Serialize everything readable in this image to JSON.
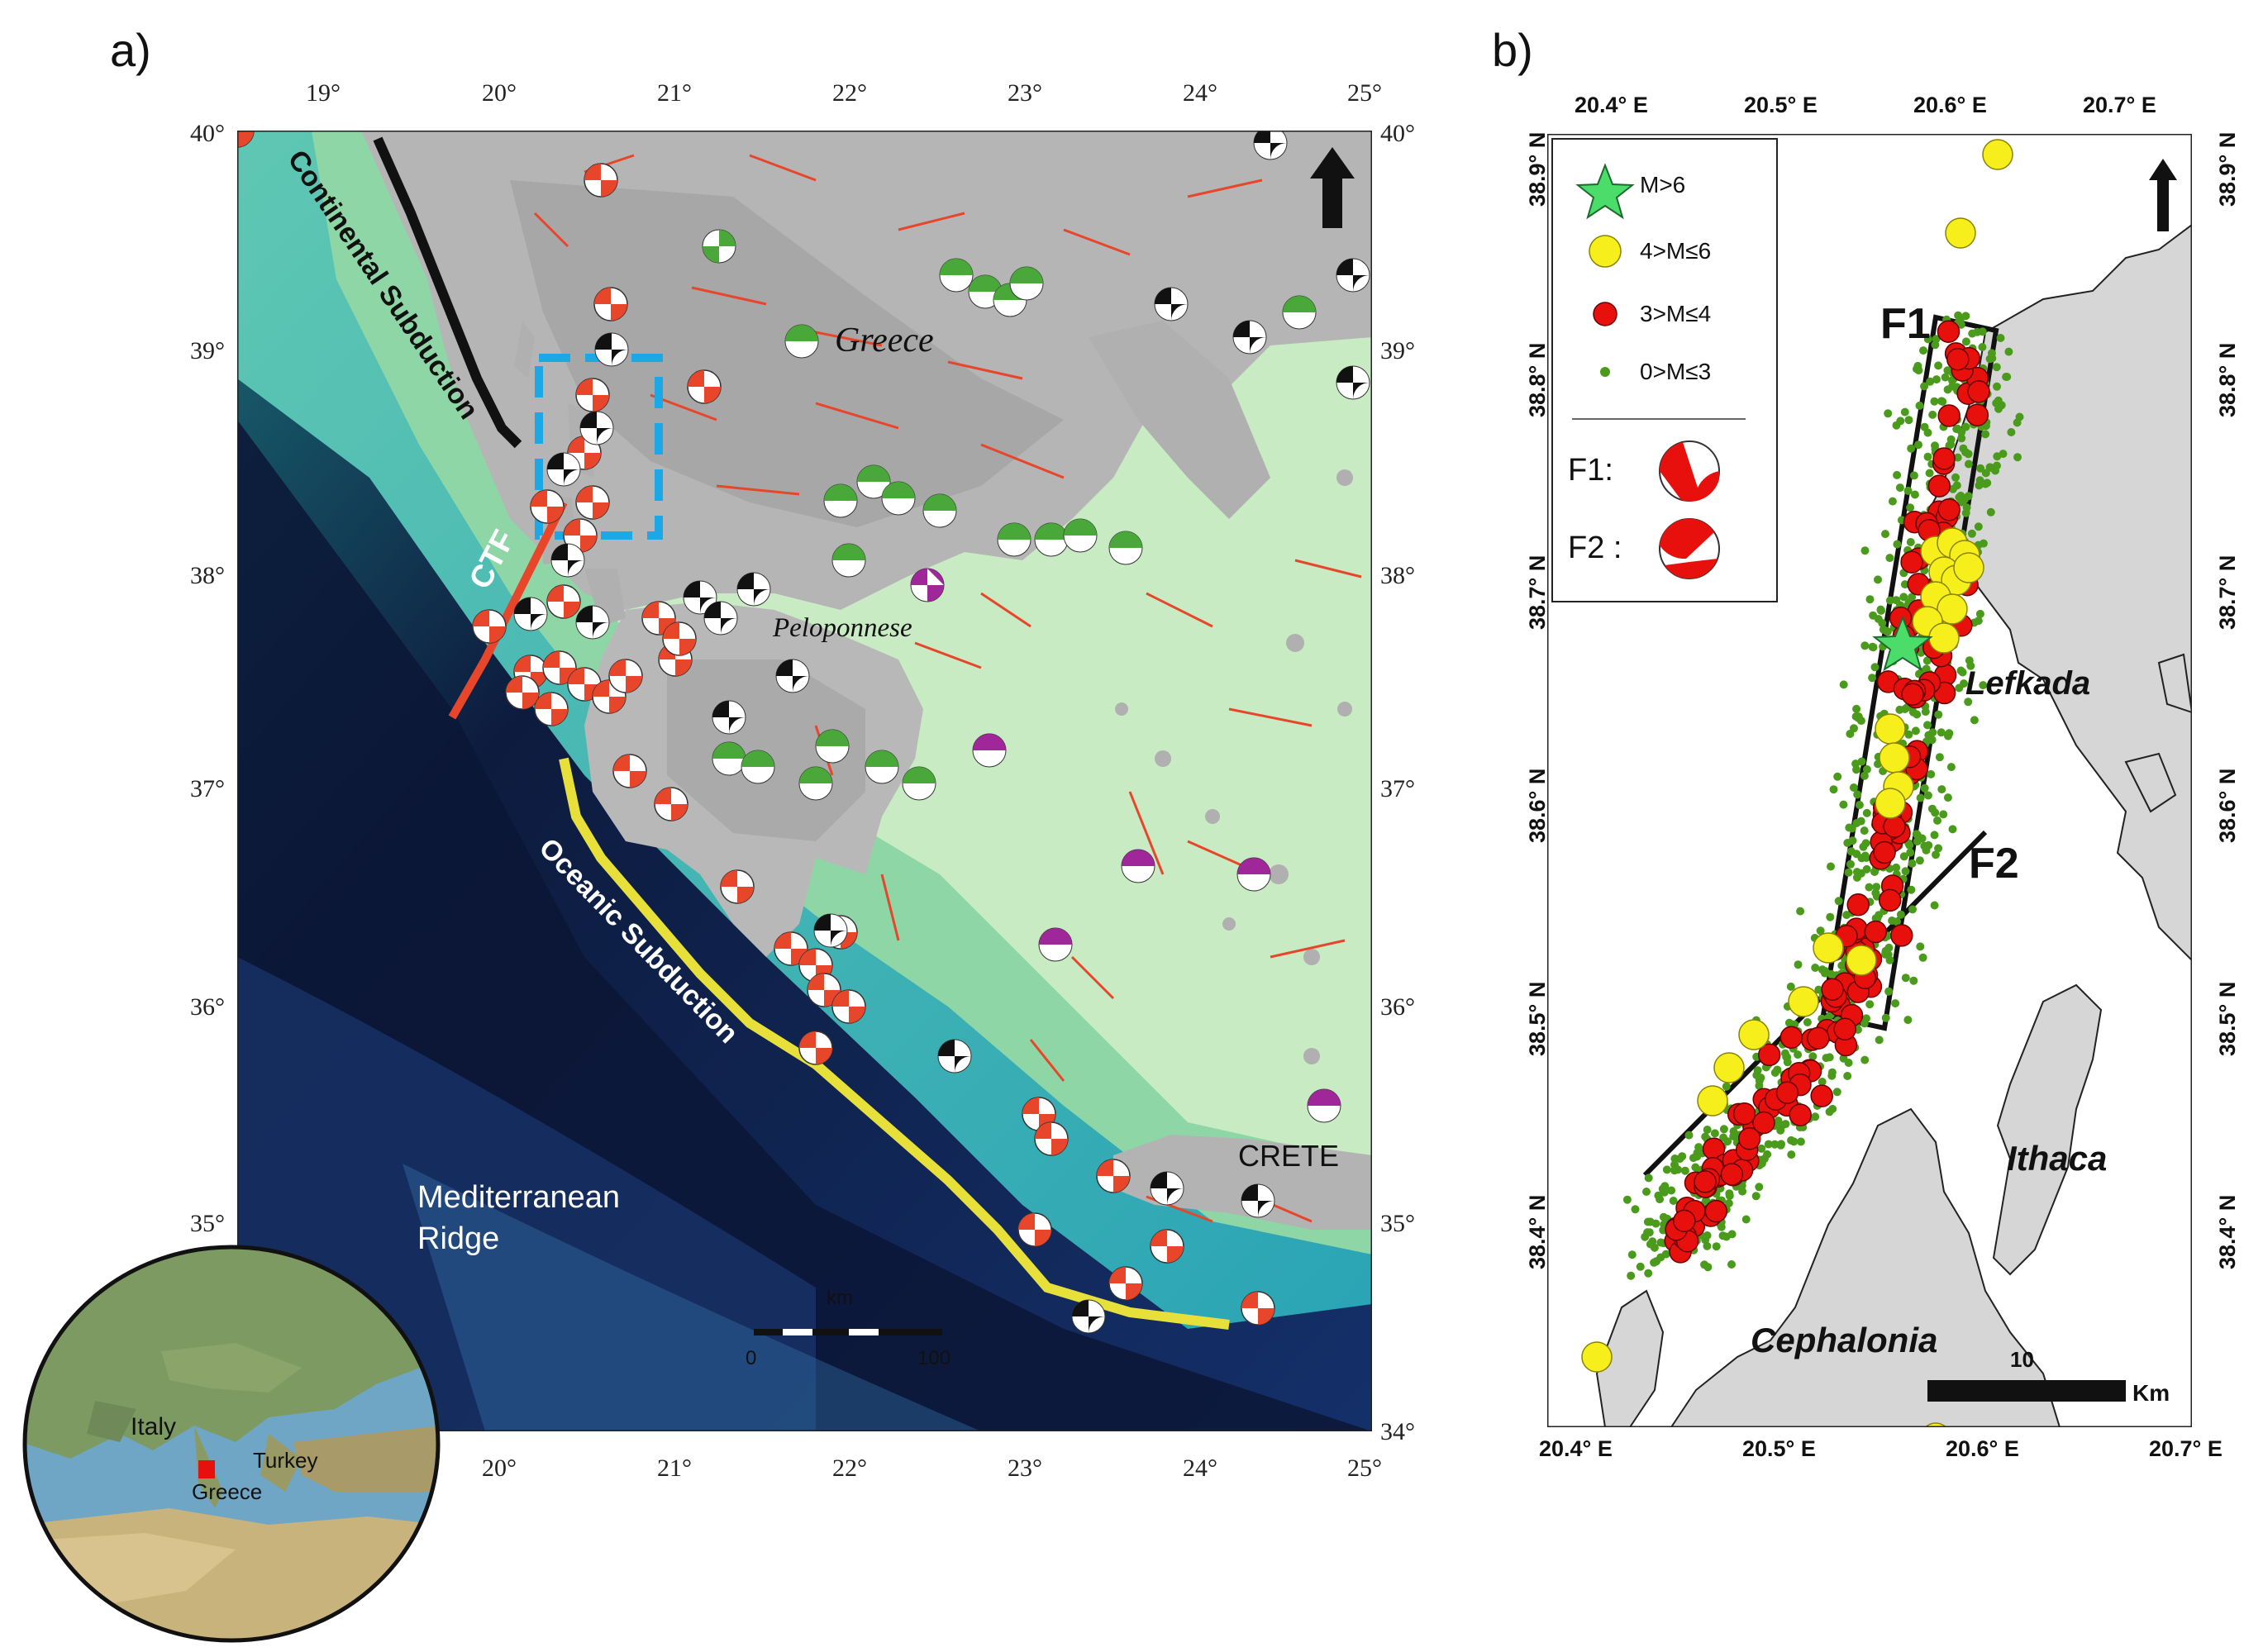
{
  "panel_a": {
    "label": "a)",
    "top_ticks": [
      "19°",
      "20°",
      "21°",
      "22°",
      "23°",
      "24°",
      "25°"
    ],
    "bottom_ticks": [
      "20°",
      "21°",
      "22°",
      "23°",
      "24°",
      "25°"
    ],
    "left_ticks": [
      "40°",
      "39°",
      "38°",
      "37°",
      "36°",
      "35°"
    ],
    "right_ticks": [
      "40°",
      "39°",
      "38°",
      "37°",
      "36°",
      "35°",
      "34°"
    ],
    "labels": {
      "greece": "Greece",
      "peloponnese": "Peloponnese",
      "crete": "CRETE",
      "ridge_line1": "Mediterranean",
      "ridge_line2": "Ridge",
      "continental": "Continental Subduction",
      "oceanic": "Oceanic Subduction",
      "ctf": "CTF"
    },
    "scale_bar": {
      "unit": "km",
      "start": "0",
      "end": "100"
    },
    "inset": {
      "italy": "Italy",
      "turkey": "Turkey",
      "greece": "Greece"
    },
    "colors": {
      "sea_deep": "#0d1b3e",
      "land": "#b9b9b9",
      "subduction_oceanic": "#e8e03a",
      "ctf": "#e8462b",
      "study_box": "#1aa9e6"
    }
  },
  "panel_b": {
    "label": "b)",
    "top_ticks": [
      "20.4° E",
      "20.5° E",
      "20.6° E",
      "20.7° E"
    ],
    "bottom_ticks": [
      "20.4° E",
      "20.5° E",
      "20.6° E",
      "20.7° E"
    ],
    "left_ticks": [
      "38.9° N",
      "38.8° N",
      "38.7° N",
      "38.6° N",
      "38.5° N",
      "38.4° N"
    ],
    "right_ticks": [
      "38.9° N",
      "38.8° N",
      "38.7° N",
      "38.6° N",
      "38.5° N",
      "38.4° N"
    ],
    "legend": {
      "m6": "M>6",
      "m4": "4>M≤6",
      "m3": "3>M≤4",
      "m0": "0>M≤3",
      "f1": "F1:",
      "f2": "F2 :"
    },
    "labels": {
      "f1": "F1",
      "f2": "F2",
      "lefkada": "Lefkada",
      "ithaca": "Ithaca",
      "cephalonia": "Cephalonia"
    },
    "scale_bar": {
      "value": "10",
      "unit": "Km"
    },
    "colors": {
      "m6": "#4cdc6a",
      "m4": "#f6ef1c",
      "m3": "#e8100c",
      "m0": "#4a9a1c",
      "land": "#d6d6d6"
    }
  }
}
